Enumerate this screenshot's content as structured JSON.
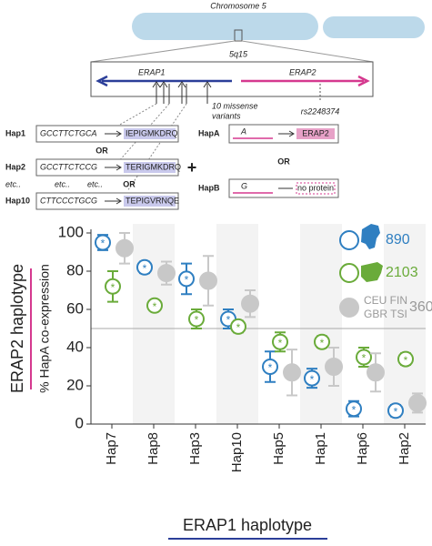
{
  "diagram": {
    "chromosome": "Chromosome 5",
    "band": "5q15",
    "genes": [
      "ERAP1",
      "ERAP2"
    ],
    "missense": [
      "10 missense",
      "variants"
    ],
    "snp": "rs2248374",
    "erap1_haplotypes": [
      {
        "name": "Hap1",
        "sequence": "GCCTTCTGCA",
        "protein": "IEPIGMKDRQ"
      },
      {
        "name": "Hap2",
        "sequence": "GCCTTCTCCG",
        "protein": "TERIGMKDRQ"
      },
      {
        "name": "Hap10",
        "sequence": "CTTCCCTGCG",
        "protein": "TEPIGVRNQE"
      }
    ],
    "separators": [
      "OR",
      "OR"
    ],
    "etc": [
      "etc..",
      "etc..",
      "etc.."
    ],
    "plus": "+",
    "erap2_haplotypes": [
      {
        "name": "HapA",
        "allele": "A",
        "product": "ERAP2"
      },
      {
        "name": "HapB",
        "allele": "G",
        "product": "no protein"
      }
    ],
    "erap2_or": "OR"
  },
  "chart_data": {
    "type": "errorbar",
    "ylabel": "% HapA co-expression",
    "ylabel_group": "ERAP2 haplotype",
    "xlabel": "ERAP1 haplotype",
    "categories": [
      "Hap7",
      "Hap8",
      "Hap3",
      "Hap10",
      "Hap5",
      "Hap1",
      "Hap6",
      "Hap2"
    ],
    "ylim": [
      0,
      100
    ],
    "yticks": [
      0,
      20,
      40,
      60,
      80,
      100
    ],
    "reference_line": 50,
    "series": [
      {
        "count": 890,
        "symbol": "*",
        "color": "#2f7fc1",
        "values": [
          95,
          82,
          76,
          55,
          30,
          24,
          8,
          7
        ],
        "errors": [
          4,
          3,
          8,
          5,
          8,
          5,
          4,
          3
        ]
      },
      {
        "count": 2103,
        "symbol": "*",
        "color": "#6aab3a",
        "values": [
          72,
          62,
          55,
          51,
          43,
          43,
          35,
          34
        ],
        "errors": [
          8,
          2,
          5,
          3,
          5,
          3,
          5,
          3
        ]
      },
      {
        "name_lines": [
          "CEU FIN",
          "GBR TSI"
        ],
        "count": 360,
        "color": "#c8c8c8",
        "values": [
          92,
          79,
          75,
          63,
          27,
          30,
          27,
          11
        ],
        "errors": [
          8,
          6,
          13,
          7,
          12,
          10,
          10,
          5
        ]
      }
    ]
  }
}
